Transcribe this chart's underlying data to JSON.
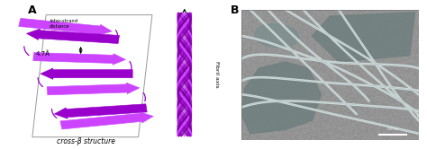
{
  "fig_width": 4.74,
  "fig_height": 1.66,
  "dpi": 100,
  "bg_color": "#ffffff",
  "panel_A_label": "A",
  "panel_B_label": "B",
  "cross_beta_label": "cross-β structure",
  "fibril_axis_label": "Fibril axis",
  "inter_strand_label": "Inter-strand\ndistance",
  "distance_label": "4.7Å",
  "purple_main": "#9900cc",
  "purple_light": "#cc44ff",
  "purple_mid": "#aa00cc",
  "purple_dark": "#770099",
  "em_bg_color": "#8a9e9e",
  "em_blob_color": "#7a9090",
  "em_fibril_light": "#c8d4d4",
  "em_fibril_dark": "#a0b0b0",
  "n_strands": 7
}
